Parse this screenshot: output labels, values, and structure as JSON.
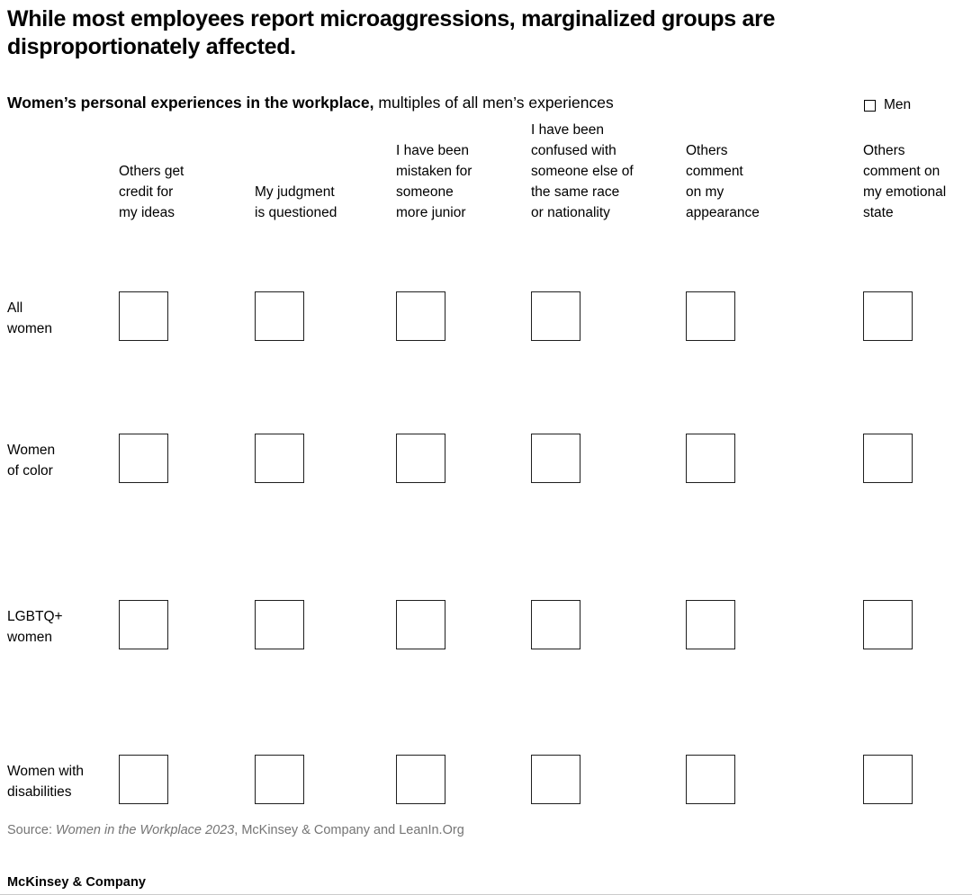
{
  "title": {
    "lines": [
      "While most employees report microaggressions, marginalized groups are",
      "disproportionately affected."
    ]
  },
  "subtitle": {
    "bold": "Women’s personal experiences in the workplace,",
    "rest": " multiples of all men’s experiences"
  },
  "legend": {
    "label": "Men",
    "swatch": "empty-square-outline",
    "swatch_color": "#000000"
  },
  "chart_data": {
    "type": "table",
    "title": "Women’s personal experiences in the workplace",
    "unit_note": "multiples of all men’s experiences",
    "legend": [
      "Men"
    ],
    "categories": [
      "Others get credit for my ideas",
      "My judgment is questioned",
      "I have been mistaken for someone more junior",
      "I have been confused with someone else of the same race or nationality",
      "Others comment on my appearance",
      "Others comment on my emotional state"
    ],
    "column_lines": [
      [
        "Others get",
        "credit for",
        "my ideas"
      ],
      [
        "My judgment",
        "is questioned"
      ],
      [
        "I have been",
        "mistaken for",
        "someone",
        "more junior"
      ],
      [
        "I have been",
        "confused with",
        "someone else of",
        "the same race",
        "or nationality"
      ],
      [
        "Others",
        "comment",
        "on my",
        "appearance"
      ],
      [
        "Others",
        "comment on",
        "my emotional",
        "state"
      ]
    ],
    "groups": [
      "All women",
      "Women of color",
      "LGBTQ+ women",
      "Women with disabilities"
    ],
    "row_lines": [
      [
        "All",
        "women"
      ],
      [
        "Women",
        "of color"
      ],
      [
        "LGBTQ+",
        "women"
      ],
      [
        "Women with",
        "disabilities"
      ]
    ],
    "men_baseline_value": 1,
    "cells_note": "Each of the 24 cells shows a single empty outlined square representing the men’s baseline (1×); no women’s multiples are drawn.",
    "grid": false,
    "legend_position": "top-right"
  },
  "source": {
    "prefix": "Source: ",
    "italic": "Women in the Workplace 2023",
    "suffix": ", McKinsey & Company and LeanIn.Org"
  },
  "footer": {
    "brand": "McKinsey & Company"
  },
  "colors": {
    "text": "#000000",
    "source_text": "#757575",
    "square_border": "#1f1f1f",
    "bottom_rule": "#cccccc"
  }
}
